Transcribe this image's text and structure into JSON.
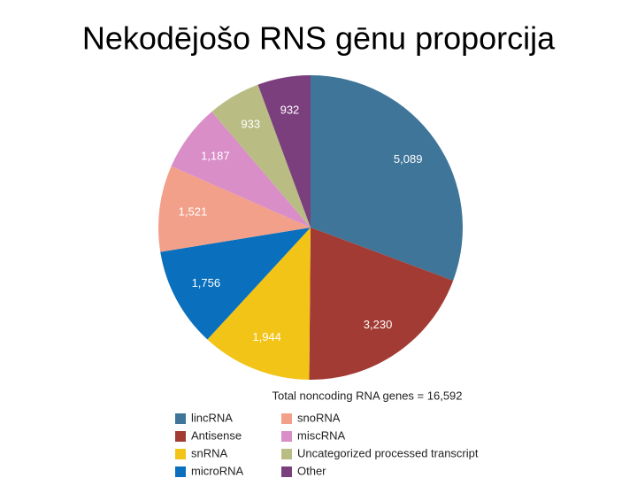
{
  "chart_data": {
    "type": "pie",
    "title": "Nekodējošo RNS gēnu proporcija",
    "annotation": "Total noncoding RNA genes = 16,592",
    "categories": [
      "lincRNA",
      "Antisense",
      "snRNA",
      "microRNA",
      "snoRNA",
      "miscRNA",
      "Uncategorized processed transcript",
      "Other"
    ],
    "values": [
      5089,
      3230,
      1944,
      1756,
      1521,
      1187,
      933,
      932
    ],
    "value_labels": [
      "5,089",
      "3,230",
      "1,944",
      "1,756",
      "1,521",
      "1,187",
      "933",
      "932"
    ],
    "colors": [
      "#3f7598",
      "#a23b33",
      "#f2c417",
      "#0a6fbd",
      "#f2a08a",
      "#d98ec8",
      "#b9bd83",
      "#7b3f7e"
    ],
    "legend": "bottom"
  }
}
